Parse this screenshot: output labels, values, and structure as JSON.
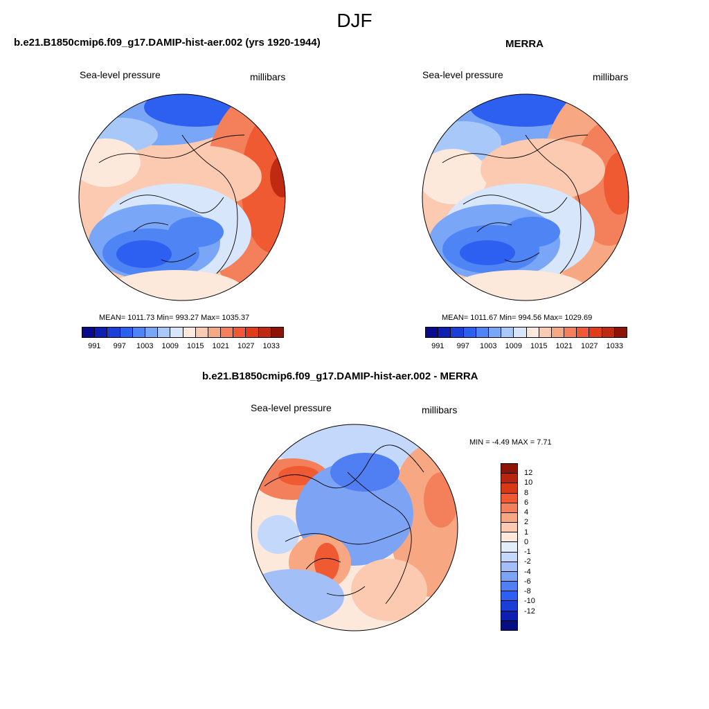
{
  "figure": {
    "title": "DJF"
  },
  "panels": [
    {
      "title": "b.e21.B1850cmip6.f09_g17.DAMIP-hist-aer.002 (yrs 1920-1944)",
      "variable": "Sea-level pressure",
      "units": "millibars",
      "stats_text": "MEAN= 1011.73  Min= 993.27  Max= 1035.37",
      "colorbar": {
        "colors": [
          "#0a0a8c",
          "#0c1fb0",
          "#1a3fd6",
          "#2d5ff0",
          "#4f84f5",
          "#7aa6f7",
          "#a9c8fa",
          "#d7e6fb",
          "#fde8dc",
          "#fbcab0",
          "#f8a783",
          "#f3805a",
          "#ef5a32",
          "#e03c18",
          "#c02a10",
          "#8c1408"
        ],
        "tick_labels": [
          "991",
          "997",
          "1003",
          "1009",
          "1015",
          "1021",
          "1027",
          "1033"
        ]
      }
    },
    {
      "title": "MERRA",
      "variable": "Sea-level pressure",
      "units": "millibars",
      "stats_text": "MEAN= 1011.67  Min= 994.56  Max= 1029.69",
      "colorbar": {
        "colors": [
          "#0a0a8c",
          "#0c1fb0",
          "#1a3fd6",
          "#2d5ff0",
          "#4f84f5",
          "#7aa6f7",
          "#a9c8fa",
          "#d7e6fb",
          "#fde8dc",
          "#fbcab0",
          "#f8a783",
          "#f3805a",
          "#ef5a32",
          "#e03c18",
          "#c02a10",
          "#8c1408"
        ],
        "tick_labels": [
          "991",
          "997",
          "1003",
          "1009",
          "1015",
          "1021",
          "1027",
          "1033"
        ]
      }
    },
    {
      "title": "b.e21.B1850cmip6.f09_g17.DAMIP-hist-aer.002 - MERRA",
      "variable": "Sea-level pressure",
      "units": "millibars",
      "stats_text": "MIN =  -4.49 MAX =   7.71",
      "colorbar": {
        "colors": [
          "#8c1408",
          "#b8250d",
          "#d83a15",
          "#ef5a32",
          "#f3805a",
          "#f8a783",
          "#fbcab0",
          "#fde8dc",
          "#e2eefc",
          "#c3d8fb",
          "#a2bff8",
          "#7da3f5",
          "#4f7ff2",
          "#2d5ff0",
          "#1a3fd6",
          "#0c1fb0",
          "#050f80"
        ],
        "tick_labels": [
          "12",
          "10",
          "8",
          "6",
          "4",
          "2",
          "1",
          "0",
          "-1",
          "-2",
          "-4",
          "-6",
          "-8",
          "-10",
          "-12"
        ]
      }
    }
  ]
}
